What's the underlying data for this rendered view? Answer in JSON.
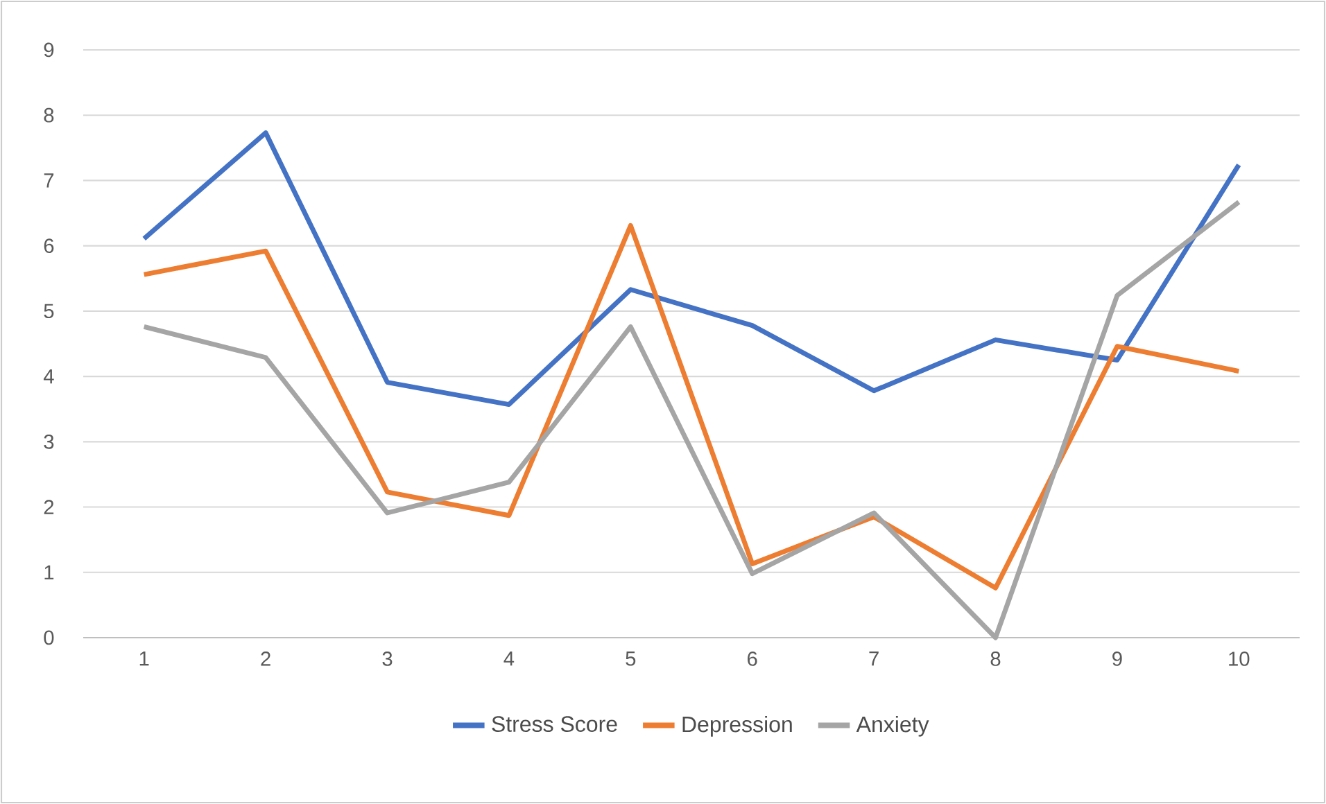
{
  "chart_data": {
    "type": "line",
    "categories": [
      "1",
      "2",
      "3",
      "4",
      "5",
      "6",
      "7",
      "8",
      "9",
      "10"
    ],
    "series": [
      {
        "name": "Stress Score",
        "color": "#4472c4",
        "values": [
          6.11,
          7.73,
          3.91,
          3.57,
          5.33,
          4.78,
          3.78,
          4.56,
          4.25,
          7.24
        ]
      },
      {
        "name": "Depression",
        "color": "#ed7d31",
        "values": [
          5.56,
          5.92,
          2.23,
          1.87,
          6.31,
          1.13,
          1.85,
          0.76,
          4.46,
          4.08
        ]
      },
      {
        "name": "Anxiety",
        "color": "#a5a5a5",
        "values": [
          4.76,
          4.29,
          1.91,
          2.38,
          4.76,
          0.98,
          1.91,
          0,
          5.24,
          6.67
        ]
      }
    ],
    "ylim": [
      0,
      9
    ],
    "yticks": [
      0,
      1,
      2,
      3,
      4,
      5,
      6,
      7,
      8,
      9
    ],
    "grid": "y",
    "legend": "bottom",
    "marker": "none",
    "line_style": "solid"
  }
}
